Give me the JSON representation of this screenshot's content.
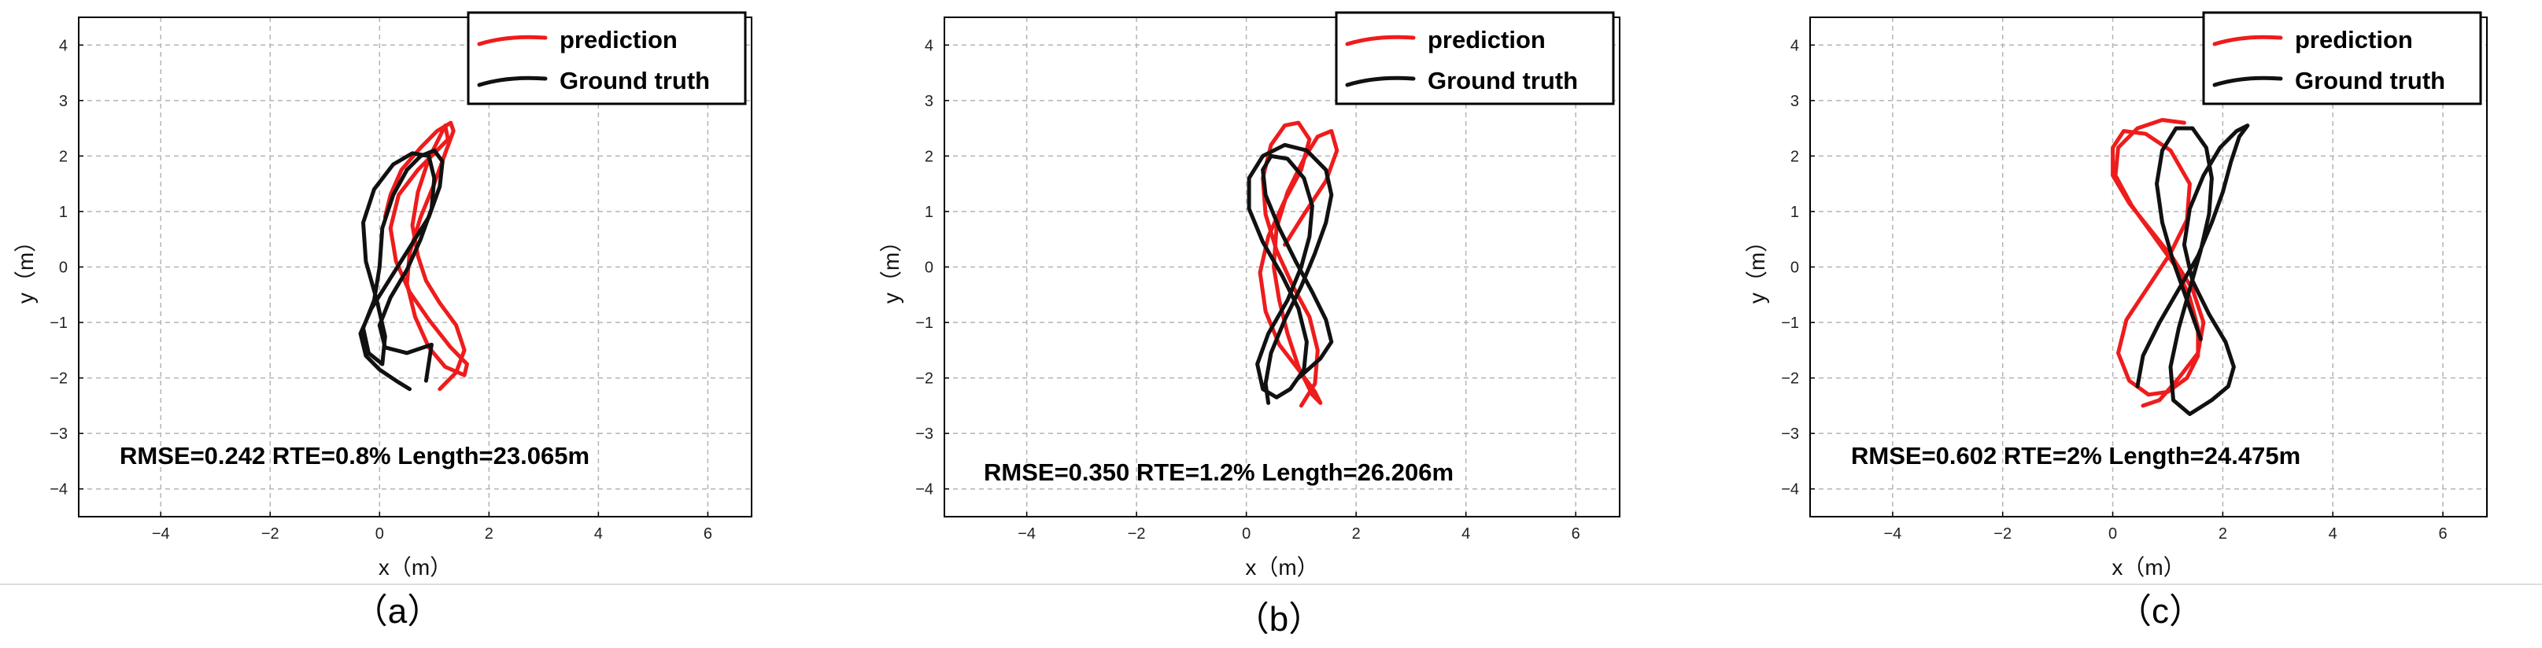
{
  "colors": {
    "prediction": "#ee1c1c",
    "ground_truth": "#111111",
    "grid": "#b4b4b4",
    "frame": "#000000"
  },
  "chart_data": [
    {
      "type": "line",
      "caption": "（a）",
      "xlabel": "x（m）",
      "ylabel": "y（m）",
      "xlim": [
        -5.5,
        6.8
      ],
      "ylim": [
        -4.5,
        4.5
      ],
      "xticks": [
        -4,
        -2,
        0,
        2,
        4,
        6
      ],
      "yticks": [
        -4,
        -3,
        -2,
        -1,
        0,
        1,
        2,
        3,
        4
      ],
      "grid": true,
      "legend_position": "top-right",
      "annotation": "RMSE=0.242  RTE=0.8%  Length=23.065m",
      "series": [
        {
          "name": "prediction",
          "color_key": "prediction",
          "x": [
            1.1,
            1.4,
            1.55,
            1.4,
            1.1,
            0.85,
            0.7,
            0.6,
            0.7,
            0.9,
            1.1,
            1.2,
            1.25,
            1.0,
            0.7,
            0.35,
            0.2,
            0.3,
            0.55,
            0.9,
            1.3,
            1.6,
            1.55,
            1.2,
            0.9,
            0.65,
            0.5,
            0.55,
            0.75,
            1.0,
            1.2,
            1.35,
            1.3,
            1.05,
            0.75,
            0.4,
            0.2,
            0.1
          ],
          "y": [
            -2.2,
            -1.9,
            -1.5,
            -1.05,
            -0.65,
            -0.25,
            0.2,
            0.75,
            1.35,
            1.95,
            2.35,
            2.55,
            2.3,
            2.05,
            1.75,
            1.3,
            0.7,
            0.1,
            -0.45,
            -0.95,
            -1.45,
            -1.75,
            -1.95,
            -1.8,
            -1.45,
            -0.9,
            -0.3,
            0.25,
            0.9,
            1.5,
            2.05,
            2.45,
            2.6,
            2.45,
            2.15,
            1.75,
            1.3,
            0.9
          ]
        },
        {
          "name": "Ground truth",
          "color_key": "ground_truth",
          "x": [
            0.55,
            0.3,
            0.0,
            -0.25,
            -0.35,
            -0.15,
            0.2,
            0.55,
            0.9,
            1.1,
            1.15,
            1.0,
            0.75,
            0.5,
            0.25,
            0.05,
            0.0,
            -0.1,
            -0.3,
            -0.2,
            0.05,
            0.1,
            -0.05,
            -0.25,
            -0.3,
            -0.1,
            0.25,
            0.6,
            0.9,
            1.0,
            0.95,
            0.75,
            0.5,
            0.2,
            0.0,
            0.1,
            0.5,
            0.95,
            0.85
          ],
          "y": [
            -2.2,
            -2.05,
            -1.85,
            -1.6,
            -1.2,
            -0.75,
            -0.2,
            0.35,
            0.9,
            1.45,
            1.9,
            2.1,
            2.0,
            1.75,
            1.3,
            0.7,
            0.0,
            -0.6,
            -1.1,
            -1.55,
            -1.75,
            -1.25,
            -0.6,
            0.1,
            0.8,
            1.4,
            1.85,
            2.05,
            2.0,
            1.6,
            1.05,
            0.5,
            -0.05,
            -0.55,
            -1.05,
            -1.45,
            -1.55,
            -1.4,
            -2.05
          ]
        }
      ]
    },
    {
      "type": "line",
      "caption": "（b）",
      "xlabel": "x（m）",
      "ylabel": "y（m）",
      "xlim": [
        -5.5,
        6.8
      ],
      "ylim": [
        -4.5,
        4.5
      ],
      "xticks": [
        -4,
        -2,
        0,
        2,
        4,
        6
      ],
      "yticks": [
        -4,
        -3,
        -2,
        -1,
        0,
        1,
        2,
        3,
        4
      ],
      "grid": true,
      "legend_position": "top-right",
      "annotation": "RMSE=0.350  RTE=1.2%  Length=26.206m",
      "series": [
        {
          "name": "prediction",
          "color_key": "prediction",
          "x": [
            1.0,
            1.25,
            1.3,
            1.15,
            0.85,
            0.55,
            0.35,
            0.3,
            0.45,
            0.7,
            0.95,
            1.15,
            1.0,
            0.7,
            0.4,
            0.25,
            0.35,
            0.6,
            0.95,
            1.25,
            1.35,
            1.2,
            0.95,
            0.75,
            0.6,
            0.5,
            0.55,
            0.75,
            1.05,
            1.3,
            1.55,
            1.65,
            1.45,
            1.05,
            0.7
          ],
          "y": [
            -2.5,
            -2.1,
            -1.5,
            -0.9,
            -0.35,
            0.3,
            0.95,
            1.6,
            2.2,
            2.55,
            2.6,
            2.3,
            1.75,
            1.2,
            0.55,
            -0.1,
            -0.8,
            -1.4,
            -1.85,
            -2.25,
            -2.45,
            -2.3,
            -1.8,
            -1.2,
            -0.6,
            0.0,
            0.7,
            1.35,
            1.95,
            2.35,
            2.45,
            2.1,
            1.55,
            0.95,
            0.4
          ]
        },
        {
          "name": "Ground truth",
          "color_key": "ground_truth",
          "x": [
            0.4,
            0.35,
            0.45,
            0.7,
            1.0,
            1.25,
            1.45,
            1.55,
            1.45,
            1.1,
            0.7,
            0.3,
            0.05,
            0.05,
            0.3,
            0.65,
            0.95,
            1.1,
            1.05,
            0.8,
            0.55,
            0.3,
            0.2,
            0.4,
            0.75,
            1.0,
            1.15,
            1.2,
            1.05,
            0.75,
            0.45,
            0.3,
            0.35,
            0.6,
            0.9,
            1.2,
            1.45,
            1.55,
            1.35,
            0.95
          ],
          "y": [
            -2.45,
            -2.1,
            -1.55,
            -0.95,
            -0.35,
            0.25,
            0.8,
            1.3,
            1.75,
            2.1,
            2.2,
            2.0,
            1.6,
            1.05,
            0.45,
            -0.15,
            -0.75,
            -1.35,
            -1.85,
            -2.2,
            -2.35,
            -2.2,
            -1.75,
            -1.2,
            -0.6,
            0.0,
            0.55,
            1.1,
            1.6,
            1.95,
            2.0,
            1.75,
            1.3,
            0.7,
            0.1,
            -0.45,
            -0.95,
            -1.35,
            -1.65,
            -2.0
          ]
        }
      ]
    },
    {
      "type": "line",
      "caption": "（c）",
      "xlabel": "x（m）",
      "ylabel": "y（m）",
      "xlim": [
        -5.5,
        6.8
      ],
      "ylim": [
        -4.5,
        4.5
      ],
      "xticks": [
        -4,
        -2,
        0,
        2,
        4,
        6
      ],
      "yticks": [
        -4,
        -3,
        -2,
        -1,
        0,
        1,
        2,
        3,
        4
      ],
      "grid": true,
      "legend_position": "top-right",
      "annotation": "RMSE=0.602  RTE=2%  Length=24.475m",
      "series": [
        {
          "name": "prediction",
          "color_key": "prediction",
          "x": [
            1.3,
            0.9,
            0.45,
            0.1,
            0.05,
            0.35,
            0.75,
            1.15,
            1.4,
            1.55,
            1.55,
            1.35,
            1.0,
            0.65,
            0.3,
            0.1,
            0.25,
            0.65,
            1.05,
            1.35,
            1.4,
            1.05,
            0.6,
            0.2,
            0.0,
            0.0,
            0.3,
            0.7,
            1.1,
            1.45,
            1.65,
            1.55,
            1.2,
            0.85,
            0.55
          ],
          "y": [
            2.6,
            2.65,
            2.5,
            2.15,
            1.65,
            1.1,
            0.55,
            0.0,
            -0.55,
            -1.1,
            -1.6,
            -2.0,
            -2.25,
            -2.3,
            -2.05,
            -1.55,
            -0.95,
            -0.35,
            0.25,
            0.85,
            1.5,
            2.1,
            2.4,
            2.45,
            2.15,
            1.65,
            1.15,
            0.65,
            0.15,
            -0.4,
            -1.0,
            -1.55,
            -2.0,
            -2.4,
            -2.5
          ]
        },
        {
          "name": "Ground truth",
          "color_key": "ground_truth",
          "x": [
            0.45,
            0.55,
            0.85,
            1.2,
            1.55,
            1.8,
            2.0,
            2.15,
            2.3,
            2.45,
            2.25,
            1.95,
            1.65,
            1.4,
            1.3,
            1.45,
            1.75,
            2.05,
            2.2,
            2.1,
            1.8,
            1.4,
            1.1,
            1.05,
            1.2,
            1.4,
            1.6,
            1.75,
            1.8,
            1.7,
            1.45,
            1.15,
            0.9,
            0.8,
            0.9,
            1.1,
            1.35,
            1.6
          ],
          "y": [
            -2.15,
            -1.6,
            -1.0,
            -0.4,
            0.2,
            0.8,
            1.35,
            1.9,
            2.35,
            2.55,
            2.45,
            2.15,
            1.65,
            1.05,
            0.4,
            -0.25,
            -0.85,
            -1.35,
            -1.8,
            -2.15,
            -2.4,
            -2.65,
            -2.4,
            -1.8,
            -1.1,
            -0.4,
            0.3,
            0.95,
            1.6,
            2.15,
            2.5,
            2.5,
            2.1,
            1.5,
            0.8,
            0.1,
            -0.6,
            -1.3
          ]
        }
      ]
    }
  ]
}
